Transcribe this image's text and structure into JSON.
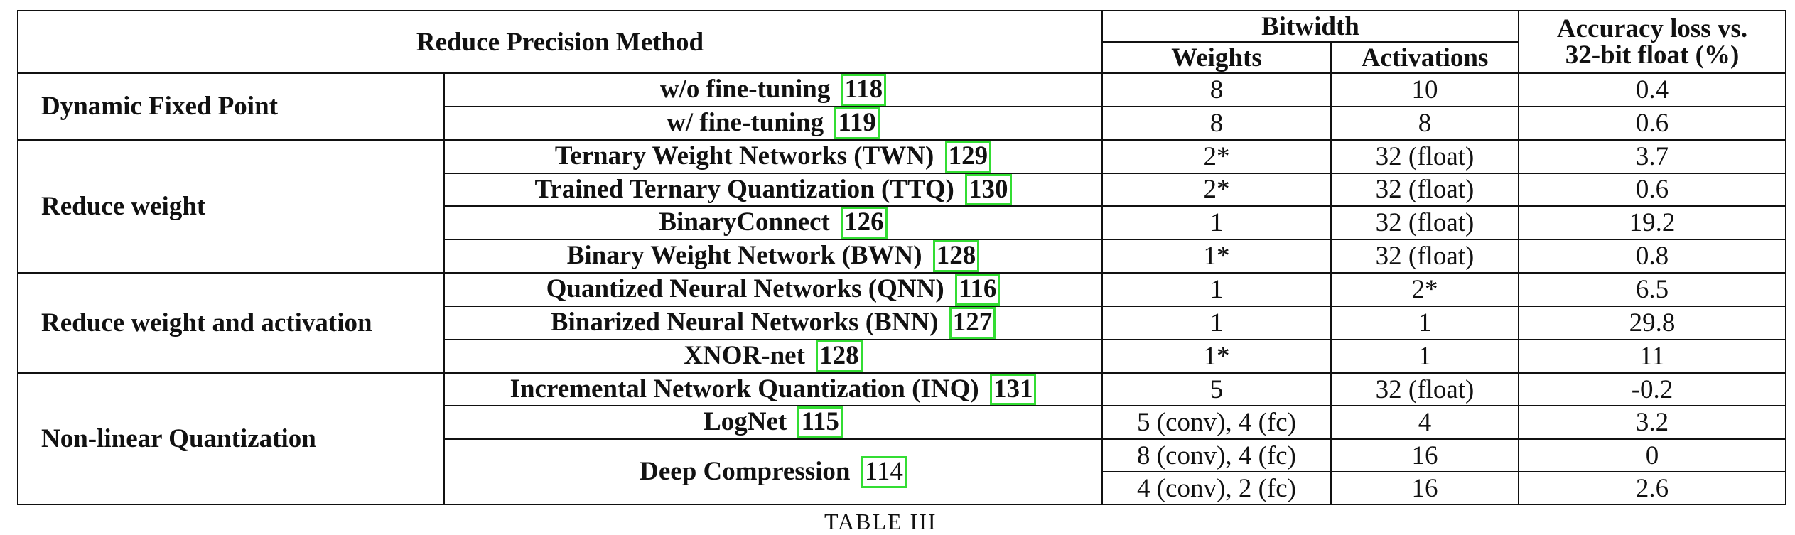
{
  "header": {
    "method": "Reduce Precision Method",
    "bitwidth": "Bitwidth",
    "weights": "Weights",
    "activations": "Activations",
    "accuracy": "Accuracy loss vs.",
    "accuracy2": "32-bit float (%)"
  },
  "groups": {
    "dfp": "Dynamic Fixed Point",
    "rw": "Reduce weight",
    "rwa": "Reduce weight and activation",
    "nlq": "Non-linear Quantization"
  },
  "rows": [
    {
      "method": "w/o fine-tuning",
      "ref": "118",
      "weights": "8",
      "activations": "10",
      "loss": "0.4"
    },
    {
      "method": "w/ fine-tuning",
      "ref": "119",
      "weights": "8",
      "activations": "8",
      "loss": "0.6"
    },
    {
      "method": "Ternary Weight Networks (TWN)",
      "ref": "129",
      "weights": "2*",
      "activations": "32 (float)",
      "loss": "3.7"
    },
    {
      "method": "Trained Ternary Quantization (TTQ)",
      "ref": "130",
      "weights": "2*",
      "activations": "32 (float)",
      "loss": "0.6"
    },
    {
      "method": "BinaryConnect",
      "ref": "126",
      "weights": "1",
      "activations": "32 (float)",
      "loss": "19.2"
    },
    {
      "method": "Binary Weight Network (BWN)",
      "ref": "128",
      "weights": "1*",
      "activations": "32 (float)",
      "loss": "0.8"
    },
    {
      "method": "Quantized Neural Networks (QNN)",
      "ref": "116",
      "weights": "1",
      "activations": "2*",
      "loss": "6.5"
    },
    {
      "method": "Binarized Neural Networks (BNN)",
      "ref": "127",
      "weights": "1",
      "activations": "1",
      "loss": "29.8"
    },
    {
      "method": "XNOR-net",
      "ref": "128",
      "weights": "1*",
      "activations": "1",
      "loss": "11"
    },
    {
      "method": "Incremental Network Quantization (INQ)",
      "ref": "131",
      "weights": "5",
      "activations": "32 (float)",
      "loss": "-0.2"
    },
    {
      "method": "LogNet",
      "ref": "115",
      "weights": "5 (conv), 4 (fc)",
      "activations": "4",
      "loss": "3.2"
    },
    {
      "method": "Deep Compression",
      "ref": "114",
      "weights": "8 (conv), 4 (fc)",
      "activations": "16",
      "loss": "0"
    },
    {
      "method": "",
      "ref": "",
      "weights": "4 (conv), 2 (fc)",
      "activations": "16",
      "loss": "2.6"
    }
  ],
  "caption": "TABLE III"
}
